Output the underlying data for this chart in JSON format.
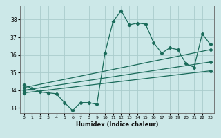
{
  "xlabel": "Humidex (Indice chaleur)",
  "ylabel": "",
  "bg_color": "#cce8e8",
  "grid_color": "#aacccc",
  "line_color": "#1a6b5a",
  "xlim": [
    -0.5,
    23.5
  ],
  "ylim": [
    32.7,
    38.8
  ],
  "yticks": [
    33,
    34,
    35,
    36,
    37,
    38
  ],
  "xticks": [
    0,
    1,
    2,
    3,
    4,
    5,
    6,
    7,
    8,
    9,
    10,
    11,
    12,
    13,
    14,
    15,
    16,
    17,
    18,
    19,
    20,
    21,
    22,
    23
  ],
  "series1_x": [
    0,
    1,
    2,
    3,
    4,
    5,
    6,
    7,
    8,
    9,
    10,
    11,
    12,
    13,
    14,
    15,
    16,
    17,
    18,
    19,
    20,
    21,
    22,
    23
  ],
  "series1_y": [
    34.3,
    34.1,
    33.9,
    33.85,
    33.8,
    33.3,
    32.85,
    33.3,
    33.3,
    33.2,
    36.1,
    37.9,
    38.5,
    37.7,
    37.8,
    37.75,
    36.7,
    36.1,
    36.4,
    36.3,
    35.5,
    35.3,
    37.2,
    36.6
  ],
  "series2_x": [
    0,
    23
  ],
  "series2_y": [
    34.15,
    36.3
  ],
  "series3_x": [
    0,
    23
  ],
  "series3_y": [
    34.0,
    35.6
  ],
  "series4_x": [
    0,
    23
  ],
  "series4_y": [
    33.85,
    35.1
  ]
}
